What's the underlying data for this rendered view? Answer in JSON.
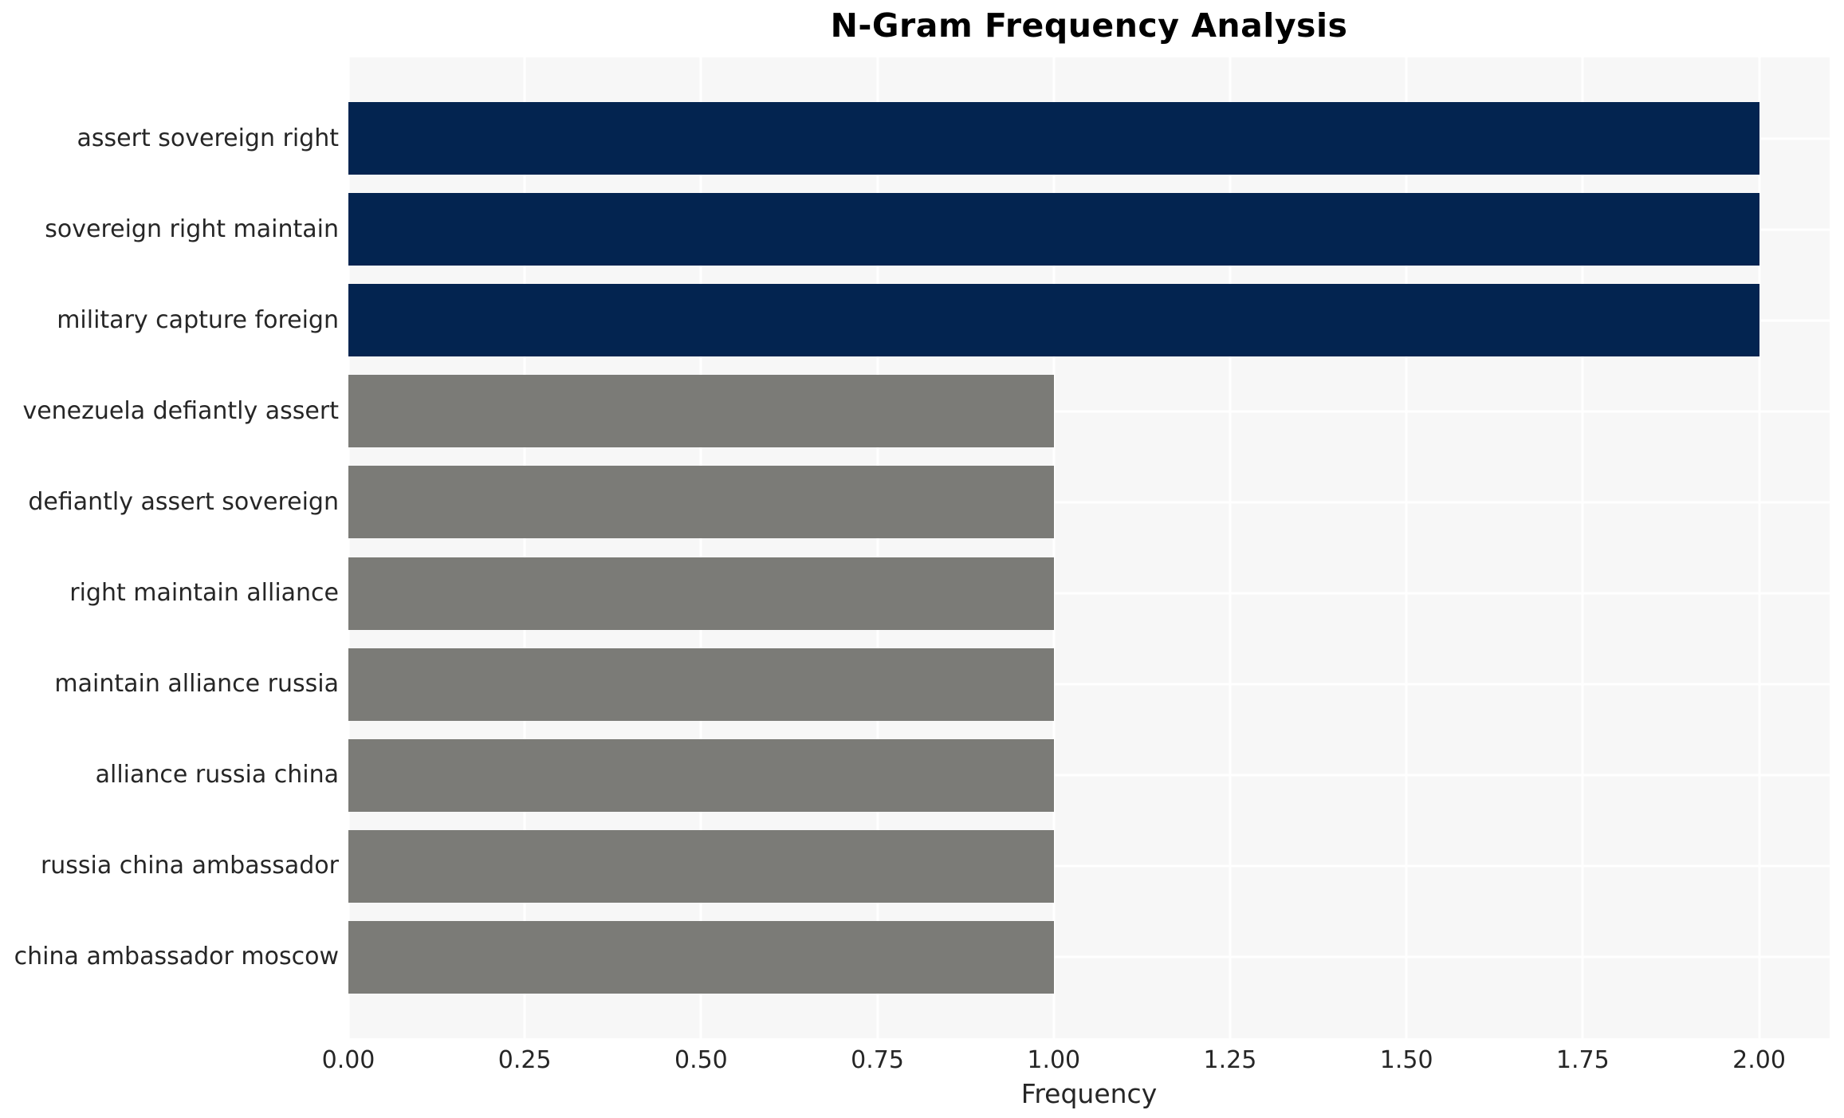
{
  "chart_data": {
    "type": "bar",
    "orientation": "horizontal",
    "title": "N-Gram Frequency Analysis",
    "xlabel": "Frequency",
    "ylabel": "",
    "categories": [
      "assert sovereign right",
      "sovereign right maintain",
      "military capture foreign",
      "venezuela defiantly assert",
      "defiantly assert sovereign",
      "right maintain alliance",
      "maintain alliance russia",
      "alliance russia china",
      "russia china ambassador",
      "china ambassador moscow"
    ],
    "values": [
      2,
      2,
      2,
      1,
      1,
      1,
      1,
      1,
      1,
      1
    ],
    "bar_colors": [
      "#032450",
      "#032450",
      "#032450",
      "#7b7b77",
      "#7b7b77",
      "#7b7b77",
      "#7b7b77",
      "#7b7b77",
      "#7b7b77",
      "#7b7b77"
    ],
    "xlim": [
      0,
      2.1
    ],
    "xticks": {
      "values": [
        0,
        0.25,
        0.5,
        0.75,
        1,
        1.25,
        1.5,
        1.75,
        2
      ],
      "labels": [
        "0.00",
        "0.25",
        "0.50",
        "0.75",
        "1.00",
        "1.25",
        "1.50",
        "1.75",
        "2.00"
      ]
    },
    "grid": true,
    "legend_position": "none",
    "colors": {
      "plot_background": "#f7f7f7",
      "gridline": "#ffffff",
      "text": "#262626",
      "title": "#000000",
      "bar_high": "#032450",
      "bar_low": "#7b7b77"
    }
  }
}
